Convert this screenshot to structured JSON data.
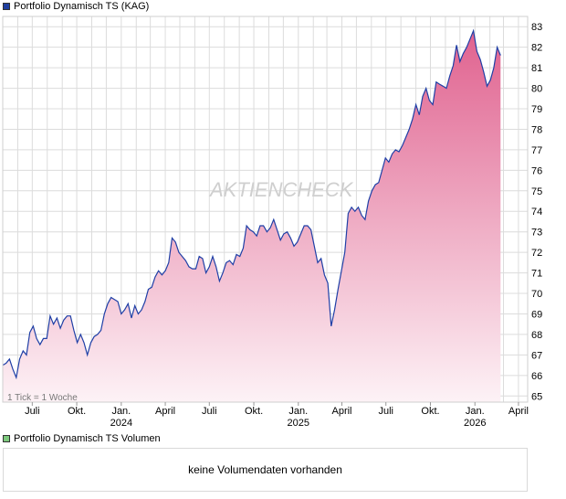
{
  "price_legend": {
    "label": "Portfolio Dynamisch TS (KAG)",
    "color": "#1f3f9f"
  },
  "volume_legend": {
    "label": "Portfolio Dynamisch TS Volumen",
    "color": "#7dc97d"
  },
  "volume_message": "keine Volumendaten vorhanden",
  "tick_note": "1 Tick = 1 Woche",
  "watermark": "AKTIENCHECK",
  "colors": {
    "line": "#1f3fa6",
    "fill_top": "#e0628f",
    "fill_bottom": "#fdf2f6",
    "grid": "#dcdcdc"
  },
  "chart_data": {
    "type": "area",
    "title": "Portfolio Dynamisch TS (KAG)",
    "x_tick_labels": [
      {
        "date": "2023-07",
        "label": "Juli",
        "year": ""
      },
      {
        "date": "2023-10",
        "label": "Okt.",
        "year": ""
      },
      {
        "date": "2024-01",
        "label": "Jan.",
        "year": "2024"
      },
      {
        "date": "2024-04",
        "label": "April",
        "year": ""
      },
      {
        "date": "2024-07",
        "label": "Juli",
        "year": ""
      },
      {
        "date": "2024-10",
        "label": "Okt.",
        "year": ""
      },
      {
        "date": "2025-01",
        "label": "Jan.",
        "year": "2025"
      },
      {
        "date": "2025-04",
        "label": "April",
        "year": ""
      },
      {
        "date": "2025-07",
        "label": "Juli",
        "year": ""
      },
      {
        "date": "2025-10",
        "label": "Okt.",
        "year": ""
      },
      {
        "date": "2026-01",
        "label": "Jan.",
        "year": "2026"
      },
      {
        "date": "2026-04",
        "label": "April",
        "year": ""
      }
    ],
    "y_ticks": [
      65,
      66,
      67,
      68,
      69,
      70,
      71,
      72,
      73,
      74,
      75,
      76,
      77,
      78,
      79,
      80,
      81,
      82,
      83
    ],
    "ylim": [
      64.7,
      83.5
    ],
    "xlim": [
      "2023-05-01",
      "2026-04-20"
    ],
    "grid": true,
    "y_axis_side": "right",
    "series": [
      {
        "name": "Portfolio Dynamisch TS (KAG)",
        "points": [
          [
            "2023-05-01",
            66.5
          ],
          [
            "2023-05-08",
            66.6
          ],
          [
            "2023-05-15",
            66.8
          ],
          [
            "2023-05-22",
            66.3
          ],
          [
            "2023-05-29",
            65.9
          ],
          [
            "2023-06-05",
            66.8
          ],
          [
            "2023-06-12",
            67.2
          ],
          [
            "2023-06-19",
            67.0
          ],
          [
            "2023-06-26",
            68.1
          ],
          [
            "2023-07-03",
            68.4
          ],
          [
            "2023-07-10",
            67.8
          ],
          [
            "2023-07-17",
            67.5
          ],
          [
            "2023-07-24",
            67.8
          ],
          [
            "2023-07-31",
            67.8
          ],
          [
            "2023-08-07",
            68.9
          ],
          [
            "2023-08-14",
            68.5
          ],
          [
            "2023-08-21",
            68.8
          ],
          [
            "2023-08-28",
            68.3
          ],
          [
            "2023-09-04",
            68.7
          ],
          [
            "2023-09-11",
            68.9
          ],
          [
            "2023-09-18",
            68.9
          ],
          [
            "2023-09-25",
            68.2
          ],
          [
            "2023-10-02",
            67.6
          ],
          [
            "2023-10-09",
            68.0
          ],
          [
            "2023-10-16",
            67.6
          ],
          [
            "2023-10-23",
            67.0
          ],
          [
            "2023-10-30",
            67.6
          ],
          [
            "2023-11-06",
            67.9
          ],
          [
            "2023-11-13",
            68.0
          ],
          [
            "2023-11-20",
            68.2
          ],
          [
            "2023-11-27",
            69.0
          ],
          [
            "2023-12-04",
            69.5
          ],
          [
            "2023-12-11",
            69.8
          ],
          [
            "2023-12-18",
            69.7
          ],
          [
            "2023-12-25",
            69.6
          ],
          [
            "2024-01-01",
            69.0
          ],
          [
            "2024-01-08",
            69.2
          ],
          [
            "2024-01-15",
            69.5
          ],
          [
            "2024-01-22",
            68.8
          ],
          [
            "2024-01-29",
            69.4
          ],
          [
            "2024-02-05",
            69.0
          ],
          [
            "2024-02-12",
            69.2
          ],
          [
            "2024-02-19",
            69.6
          ],
          [
            "2024-02-26",
            70.2
          ],
          [
            "2024-03-04",
            70.3
          ],
          [
            "2024-03-11",
            70.8
          ],
          [
            "2024-03-18",
            71.1
          ],
          [
            "2024-03-25",
            70.9
          ],
          [
            "2024-04-01",
            71.1
          ],
          [
            "2024-04-08",
            71.5
          ],
          [
            "2024-04-15",
            72.7
          ],
          [
            "2024-04-22",
            72.5
          ],
          [
            "2024-04-29",
            72.0
          ],
          [
            "2024-05-06",
            71.8
          ],
          [
            "2024-05-13",
            71.6
          ],
          [
            "2024-05-20",
            71.3
          ],
          [
            "2024-05-27",
            71.2
          ],
          [
            "2024-06-03",
            71.2
          ],
          [
            "2024-06-10",
            71.8
          ],
          [
            "2024-06-17",
            71.7
          ],
          [
            "2024-06-24",
            71.0
          ],
          [
            "2024-07-01",
            71.3
          ],
          [
            "2024-07-08",
            71.8
          ],
          [
            "2024-07-15",
            71.3
          ],
          [
            "2024-07-22",
            70.6
          ],
          [
            "2024-07-29",
            71.0
          ],
          [
            "2024-08-05",
            71.5
          ],
          [
            "2024-08-12",
            71.6
          ],
          [
            "2024-08-19",
            71.4
          ],
          [
            "2024-08-26",
            71.9
          ],
          [
            "2024-09-02",
            71.8
          ],
          [
            "2024-09-09",
            72.2
          ],
          [
            "2024-09-16",
            73.3
          ],
          [
            "2024-09-23",
            73.1
          ],
          [
            "2024-09-30",
            73.0
          ],
          [
            "2024-10-07",
            72.8
          ],
          [
            "2024-10-14",
            73.3
          ],
          [
            "2024-10-21",
            73.3
          ],
          [
            "2024-10-28",
            73.0
          ],
          [
            "2024-11-04",
            73.2
          ],
          [
            "2024-11-11",
            73.6
          ],
          [
            "2024-11-18",
            73.1
          ],
          [
            "2024-11-25",
            72.6
          ],
          [
            "2024-12-02",
            72.9
          ],
          [
            "2024-12-09",
            73.0
          ],
          [
            "2024-12-16",
            72.7
          ],
          [
            "2024-12-23",
            72.3
          ],
          [
            "2024-12-30",
            72.5
          ],
          [
            "2025-01-06",
            72.9
          ],
          [
            "2025-01-13",
            73.3
          ],
          [
            "2025-01-20",
            73.3
          ],
          [
            "2025-01-27",
            73.1
          ],
          [
            "2025-02-03",
            72.3
          ],
          [
            "2025-02-10",
            71.5
          ],
          [
            "2025-02-17",
            71.7
          ],
          [
            "2025-02-24",
            70.9
          ],
          [
            "2025-03-03",
            70.5
          ],
          [
            "2025-03-10",
            68.4
          ],
          [
            "2025-03-17",
            69.2
          ],
          [
            "2025-03-24",
            70.2
          ],
          [
            "2025-03-31",
            71.1
          ],
          [
            "2025-04-07",
            72.0
          ],
          [
            "2025-04-14",
            73.9
          ],
          [
            "2025-04-21",
            74.2
          ],
          [
            "2025-04-28",
            74.0
          ],
          [
            "2025-05-05",
            74.2
          ],
          [
            "2025-05-12",
            73.8
          ],
          [
            "2025-05-19",
            73.6
          ],
          [
            "2025-05-26",
            74.5
          ],
          [
            "2025-06-02",
            75.0
          ],
          [
            "2025-06-09",
            75.3
          ],
          [
            "2025-06-16",
            75.4
          ],
          [
            "2025-06-23",
            76.0
          ],
          [
            "2025-06-30",
            76.6
          ],
          [
            "2025-07-07",
            76.4
          ],
          [
            "2025-07-14",
            76.8
          ],
          [
            "2025-07-21",
            77.0
          ],
          [
            "2025-07-28",
            76.9
          ],
          [
            "2025-08-04",
            77.2
          ],
          [
            "2025-08-11",
            77.6
          ],
          [
            "2025-08-18",
            78.0
          ],
          [
            "2025-08-25",
            78.5
          ],
          [
            "2025-09-01",
            79.2
          ],
          [
            "2025-09-08",
            78.7
          ],
          [
            "2025-09-15",
            79.6
          ],
          [
            "2025-09-22",
            80.0
          ],
          [
            "2025-09-29",
            79.4
          ],
          [
            "2025-10-06",
            79.2
          ],
          [
            "2025-10-13",
            80.3
          ],
          [
            "2025-10-20",
            80.2
          ],
          [
            "2025-10-27",
            80.1
          ],
          [
            "2025-11-03",
            80.0
          ],
          [
            "2025-11-10",
            80.6
          ],
          [
            "2025-11-17",
            81.1
          ],
          [
            "2025-11-24",
            82.1
          ],
          [
            "2025-12-01",
            81.3
          ],
          [
            "2025-12-08",
            81.7
          ],
          [
            "2025-12-15",
            82.0
          ],
          [
            "2025-12-22",
            82.4
          ],
          [
            "2025-12-29",
            82.8
          ],
          [
            "2026-01-05",
            81.8
          ],
          [
            "2026-01-12",
            81.4
          ],
          [
            "2026-01-19",
            80.8
          ],
          [
            "2026-01-26",
            80.1
          ],
          [
            "2026-02-02",
            80.4
          ],
          [
            "2026-02-09",
            81.0
          ],
          [
            "2026-02-16",
            82.0
          ],
          [
            "2026-02-23",
            81.6
          ]
        ]
      }
    ]
  }
}
